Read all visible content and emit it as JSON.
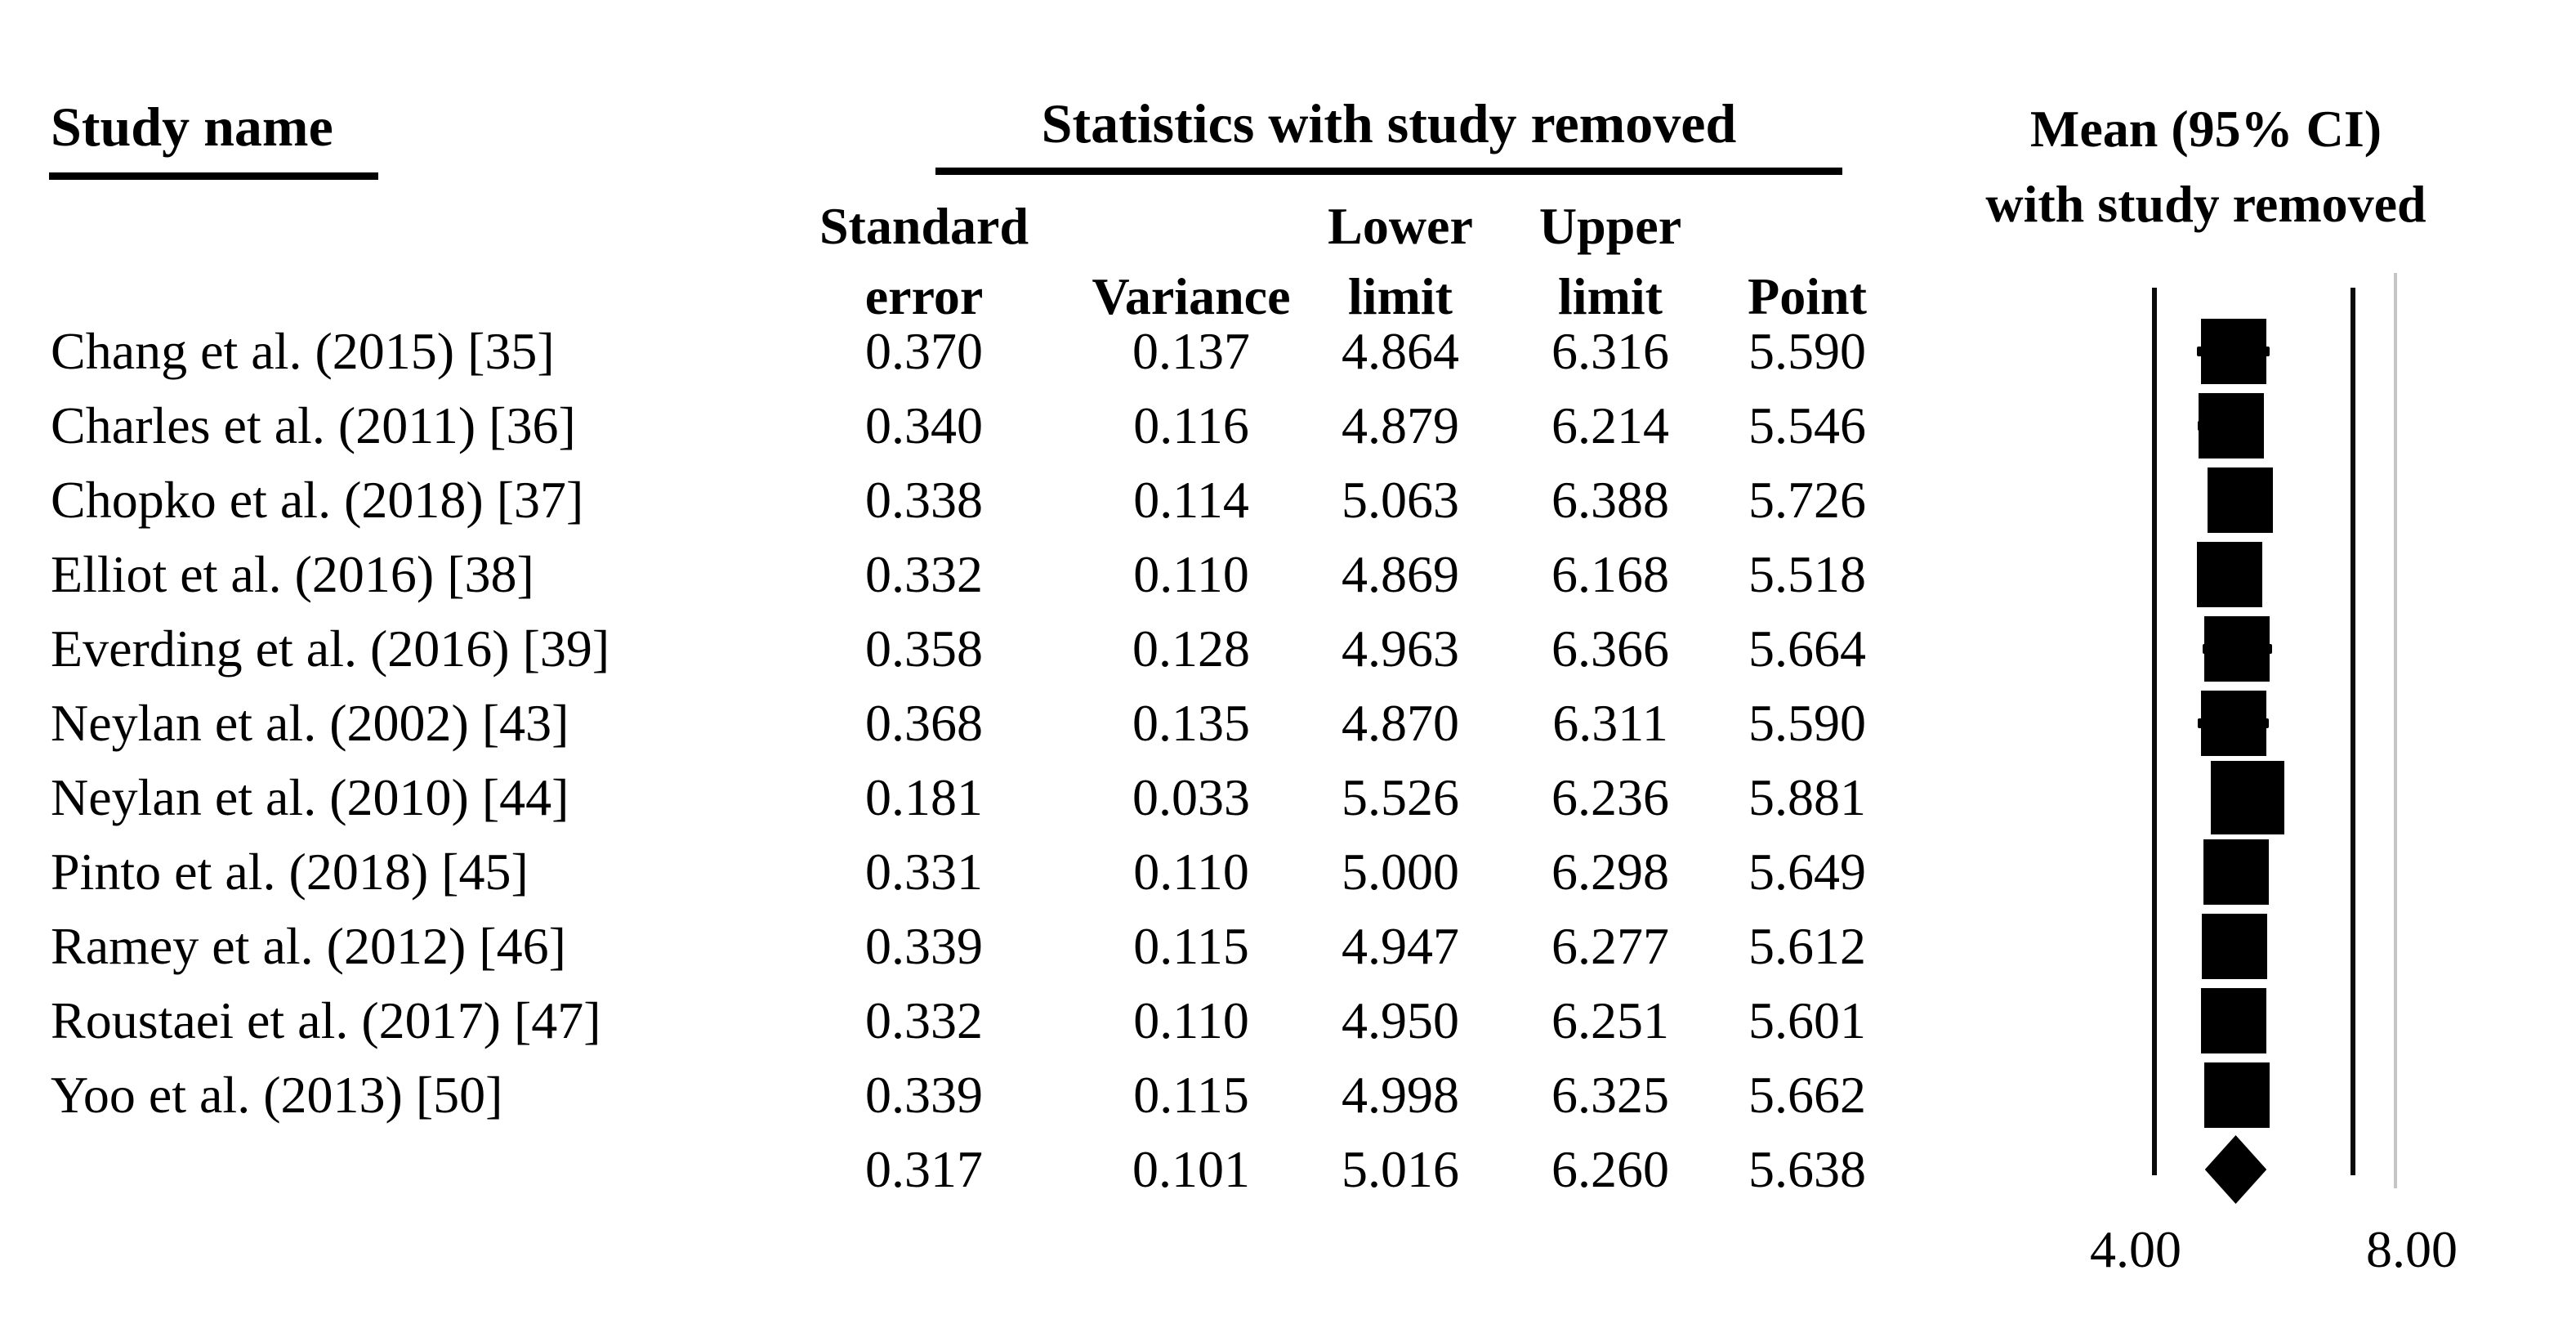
{
  "headers": {
    "study_col": "Study name",
    "stats_group": "Statistics with study removed",
    "mean_line1": "Mean (95% CI)",
    "mean_line2": "with study removed"
  },
  "columns": [
    {
      "line1": "Standard",
      "line2": "error"
    },
    {
      "line1": "",
      "line2": "Variance"
    },
    {
      "line1": "Lower",
      "line2": "limit"
    },
    {
      "line1": "Upper",
      "line2": "limit"
    },
    {
      "line1": "",
      "line2": "Point"
    }
  ],
  "colors": {
    "marker": "#000000",
    "axis_line": "#0a0a0a",
    "border_line": "#c6c6c6",
    "text": "#000000",
    "background": "#ffffff"
  },
  "chart_data": {
    "type": "forest",
    "title": "Statistics with study removed",
    "right_panel_title": "Mean (95% CI) with study removed",
    "x_min": 4.0,
    "x_max": 8.0,
    "x_tick_labels": [
      "4.00",
      "8.00"
    ],
    "grid": false,
    "legend": "none",
    "rows": [
      {
        "study": "Chang et al. (2015) [35]",
        "standard_error": "0.370",
        "variance": "0.137",
        "lower_limit": "4.864",
        "upper_limit": "6.316",
        "point": "5.590",
        "is_pooled": false
      },
      {
        "study": "Charles et al. (2011) [36]",
        "standard_error": "0.340",
        "variance": "0.116",
        "lower_limit": "4.879",
        "upper_limit": "6.214",
        "point": "5.546",
        "is_pooled": false
      },
      {
        "study": "Chopko et al. (2018) [37]",
        "standard_error": "0.338",
        "variance": "0.114",
        "lower_limit": "5.063",
        "upper_limit": "6.388",
        "point": "5.726",
        "is_pooled": false
      },
      {
        "study": "Elliot et al. (2016) [38]",
        "standard_error": "0.332",
        "variance": "0.110",
        "lower_limit": "4.869",
        "upper_limit": "6.168",
        "point": "5.518",
        "is_pooled": false
      },
      {
        "study": "Everding et al. (2016) [39]",
        "standard_error": "0.358",
        "variance": "0.128",
        "lower_limit": "4.963",
        "upper_limit": "6.366",
        "point": "5.664",
        "is_pooled": false
      },
      {
        "study": "Neylan et al. (2002) [43]",
        "standard_error": "0.368",
        "variance": "0.135",
        "lower_limit": "4.870",
        "upper_limit": "6.311",
        "point": "5.590",
        "is_pooled": false
      },
      {
        "study": "Neylan et al. (2010) [44]",
        "standard_error": "0.181",
        "variance": "0.033",
        "lower_limit": "5.526",
        "upper_limit": "6.236",
        "point": "5.881",
        "is_pooled": false
      },
      {
        "study": "Pinto et al. (2018) [45]",
        "standard_error": "0.331",
        "variance": "0.110",
        "lower_limit": "5.000",
        "upper_limit": "6.298",
        "point": "5.649",
        "is_pooled": false
      },
      {
        "study": "Ramey et al. (2012) [46]",
        "standard_error": "0.339",
        "variance": "0.115",
        "lower_limit": "4.947",
        "upper_limit": "6.277",
        "point": "5.612",
        "is_pooled": false
      },
      {
        "study": "Roustaei et al. (2017) [47]",
        "standard_error": "0.332",
        "variance": "0.110",
        "lower_limit": "4.950",
        "upper_limit": "6.251",
        "point": "5.601",
        "is_pooled": false
      },
      {
        "study": "Yoo et al. (2013) [50]",
        "standard_error": "0.339",
        "variance": "0.115",
        "lower_limit": "4.998",
        "upper_limit": "6.325",
        "point": "5.662",
        "is_pooled": false
      },
      {
        "study": "",
        "standard_error": "0.317",
        "variance": "0.101",
        "lower_limit": "5.016",
        "upper_limit": "6.260",
        "point": "5.638",
        "is_pooled": true
      }
    ]
  }
}
